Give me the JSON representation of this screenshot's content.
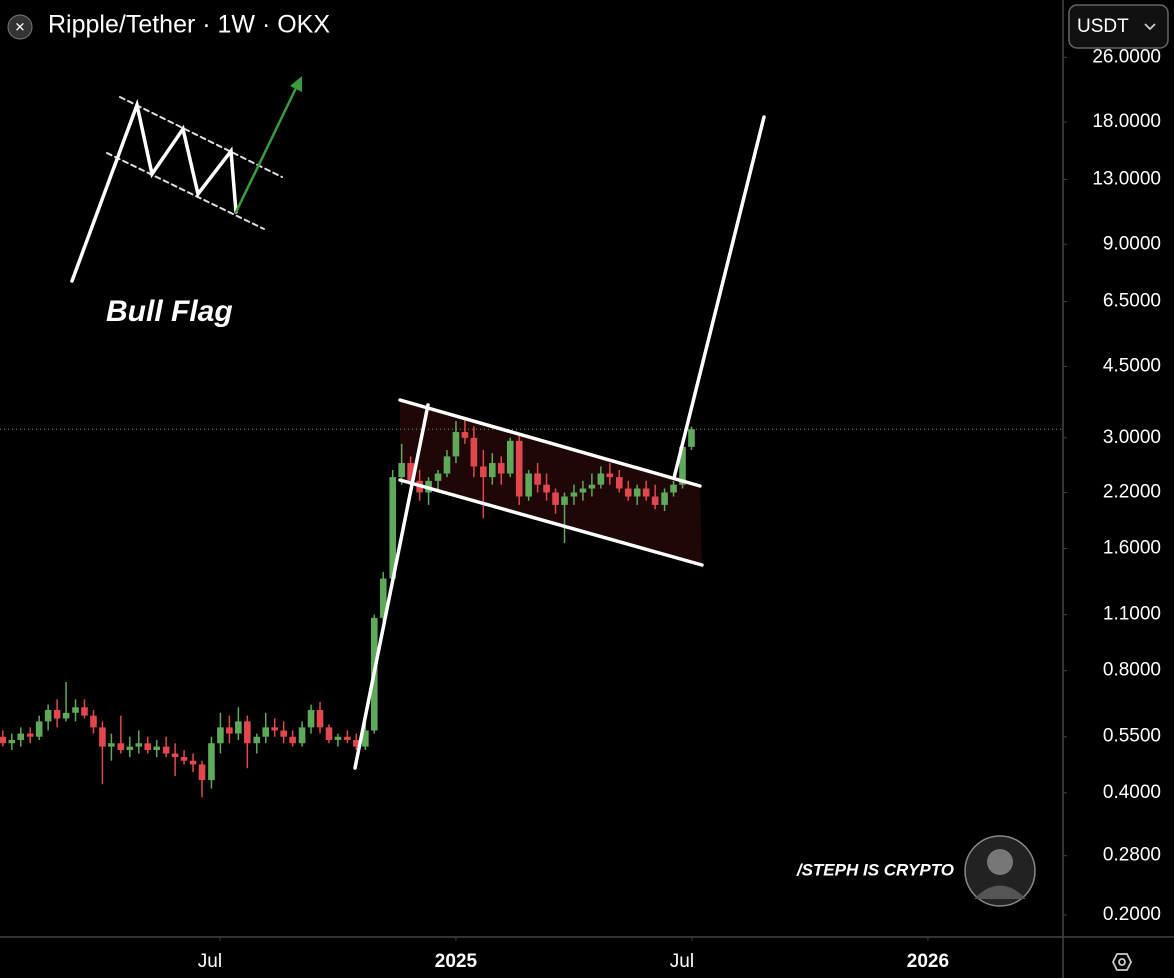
{
  "chart_data": {
    "type": "candlestick",
    "title": "Ripple/Tether · 1W · OKX",
    "quote_currency": "USDT",
    "annotations": [
      "Bull Flag",
      "/STEPH IS CRYPTO"
    ],
    "log_scale": true,
    "up_color": "#5fa95b",
    "down_color": "#e0484d",
    "xlim": [
      2024.034,
      2026.284
    ],
    "xticks": [
      {
        "value": 2024.5,
        "label": "Jul"
      },
      2025,
      {
        "value": 2025.5,
        "label": "Jul"
      },
      2026
    ],
    "ylim": [
      0.1775,
      36
    ],
    "yticks": [
      {
        "value": 0.2,
        "label": "0.2000"
      },
      {
        "value": 0.28,
        "label": "0.2800"
      },
      {
        "value": 0.4,
        "label": "0.4000"
      },
      {
        "value": 0.55,
        "label": "0.5500"
      },
      {
        "value": 0.8,
        "label": "0.8000"
      },
      {
        "value": 1.1,
        "label": "1.1000"
      },
      {
        "value": 1.6,
        "label": "1.6000"
      },
      {
        "value": 2.2,
        "label": "2.2000"
      },
      {
        "value": 3,
        "label": "3.0000"
      },
      {
        "value": 4.5,
        "label": "4.5000"
      },
      {
        "value": 6.5,
        "label": "6.5000"
      },
      {
        "value": 9,
        "label": "9.0000"
      },
      {
        "value": 13,
        "label": "13.0000"
      },
      {
        "value": 18,
        "label": "18.0000"
      },
      {
        "value": 26,
        "label": "26.0000"
      }
    ],
    "x": [
      2024.04,
      2024.059,
      2024.078,
      2024.098,
      2024.117,
      2024.136,
      2024.155,
      2024.174,
      2024.194,
      2024.213,
      2024.232,
      2024.251,
      2024.27,
      2024.29,
      2024.309,
      2024.328,
      2024.347,
      2024.366,
      2024.386,
      2024.405,
      2024.424,
      2024.443,
      2024.462,
      2024.482,
      2024.501,
      2024.52,
      2024.539,
      2024.558,
      2024.578,
      2024.597,
      2024.616,
      2024.635,
      2024.654,
      2024.674,
      2024.693,
      2024.712,
      2024.731,
      2024.75,
      2024.77,
      2024.789,
      2024.808,
      2024.827,
      2024.846,
      2024.866,
      2024.885,
      2024.904,
      2024.923,
      2024.942,
      2024.962,
      2024.981,
      2025.0,
      2025.019,
      2025.038,
      2025.058,
      2025.077,
      2025.096,
      2025.115,
      2025.134,
      2025.154,
      2025.173,
      2025.192,
      2025.211,
      2025.23,
      2025.25,
      2025.269,
      2025.288,
      2025.307,
      2025.326,
      2025.346,
      2025.365,
      2025.384,
      2025.403,
      2025.422,
      2025.442,
      2025.461,
      2025.48,
      2025.499
    ],
    "open": [
      0.55,
      0.53,
      0.54,
      0.56,
      0.55,
      0.6,
      0.64,
      0.61,
      0.63,
      0.65,
      0.62,
      0.58,
      0.52,
      0.53,
      0.51,
      0.52,
      0.53,
      0.51,
      0.52,
      0.5,
      0.49,
      0.48,
      0.47,
      0.43,
      0.53,
      0.58,
      0.56,
      0.6,
      0.53,
      0.55,
      0.58,
      0.57,
      0.55,
      0.53,
      0.58,
      0.64,
      0.58,
      0.54,
      0.55,
      0.54,
      0.52,
      0.57,
      1.08,
      1.35,
      2.4,
      2.6,
      2.35,
      2.2,
      2.35,
      2.45,
      2.7,
      3.1,
      3.0,
      2.55,
      2.4,
      2.6,
      2.45,
      2.95,
      2.15,
      2.45,
      2.3,
      2.2,
      2.05,
      2.15,
      2.2,
      2.25,
      2.3,
      2.45,
      2.4,
      2.25,
      2.15,
      2.25,
      2.15,
      2.05,
      2.2,
      2.3,
      2.85
    ],
    "high": [
      0.57,
      0.56,
      0.58,
      0.58,
      0.62,
      0.66,
      0.68,
      0.75,
      0.68,
      0.68,
      0.64,
      0.6,
      0.56,
      0.62,
      0.55,
      0.57,
      0.55,
      0.54,
      0.55,
      0.53,
      0.51,
      0.5,
      0.48,
      0.55,
      0.63,
      0.62,
      0.65,
      0.62,
      0.56,
      0.63,
      0.61,
      0.6,
      0.57,
      0.6,
      0.66,
      0.67,
      0.59,
      0.56,
      0.57,
      0.56,
      0.6,
      1.1,
      1.4,
      2.5,
      2.9,
      2.7,
      2.5,
      2.4,
      2.5,
      2.8,
      3.3,
      3.35,
      3.2,
      2.8,
      2.75,
      2.7,
      3.0,
      3.05,
      2.5,
      2.6,
      2.45,
      2.25,
      2.2,
      2.3,
      2.35,
      2.45,
      2.55,
      2.6,
      2.5,
      2.35,
      2.3,
      2.35,
      2.3,
      2.25,
      2.35,
      2.95,
      3.2
    ],
    "low": [
      0.52,
      0.51,
      0.52,
      0.53,
      0.54,
      0.57,
      0.58,
      0.6,
      0.6,
      0.61,
      0.56,
      0.42,
      0.48,
      0.5,
      0.49,
      0.5,
      0.5,
      0.49,
      0.49,
      0.44,
      0.47,
      0.45,
      0.39,
      0.41,
      0.5,
      0.53,
      0.54,
      0.46,
      0.5,
      0.53,
      0.55,
      0.53,
      0.52,
      0.52,
      0.56,
      0.56,
      0.53,
      0.52,
      0.53,
      0.51,
      0.51,
      0.56,
      1.02,
      1.3,
      2.3,
      2.25,
      2.1,
      2.05,
      2.2,
      2.4,
      2.6,
      2.9,
      2.4,
      1.9,
      2.3,
      2.3,
      2.4,
      2.05,
      2.1,
      2.2,
      2.1,
      1.95,
      1.65,
      2.05,
      2.1,
      2.15,
      2.25,
      2.3,
      2.2,
      2.1,
      2.05,
      2.1,
      2.0,
      1.98,
      2.15,
      2.25,
      2.8
    ],
    "close": [
      0.53,
      0.54,
      0.56,
      0.55,
      0.6,
      0.64,
      0.61,
      0.63,
      0.65,
      0.62,
      0.58,
      0.52,
      0.53,
      0.51,
      0.52,
      0.53,
      0.51,
      0.52,
      0.5,
      0.49,
      0.48,
      0.47,
      0.43,
      0.53,
      0.58,
      0.56,
      0.6,
      0.53,
      0.55,
      0.58,
      0.57,
      0.55,
      0.53,
      0.58,
      0.64,
      0.58,
      0.54,
      0.55,
      0.54,
      0.52,
      0.57,
      1.08,
      1.35,
      2.4,
      2.6,
      2.35,
      2.2,
      2.35,
      2.45,
      2.7,
      3.1,
      3.0,
      2.55,
      2.4,
      2.6,
      2.45,
      2.95,
      2.15,
      2.45,
      2.3,
      2.2,
      2.05,
      2.15,
      2.2,
      2.25,
      2.3,
      2.45,
      2.4,
      2.25,
      2.15,
      2.25,
      2.15,
      2.05,
      2.2,
      2.3,
      2.85,
      3.15
    ]
  }
}
